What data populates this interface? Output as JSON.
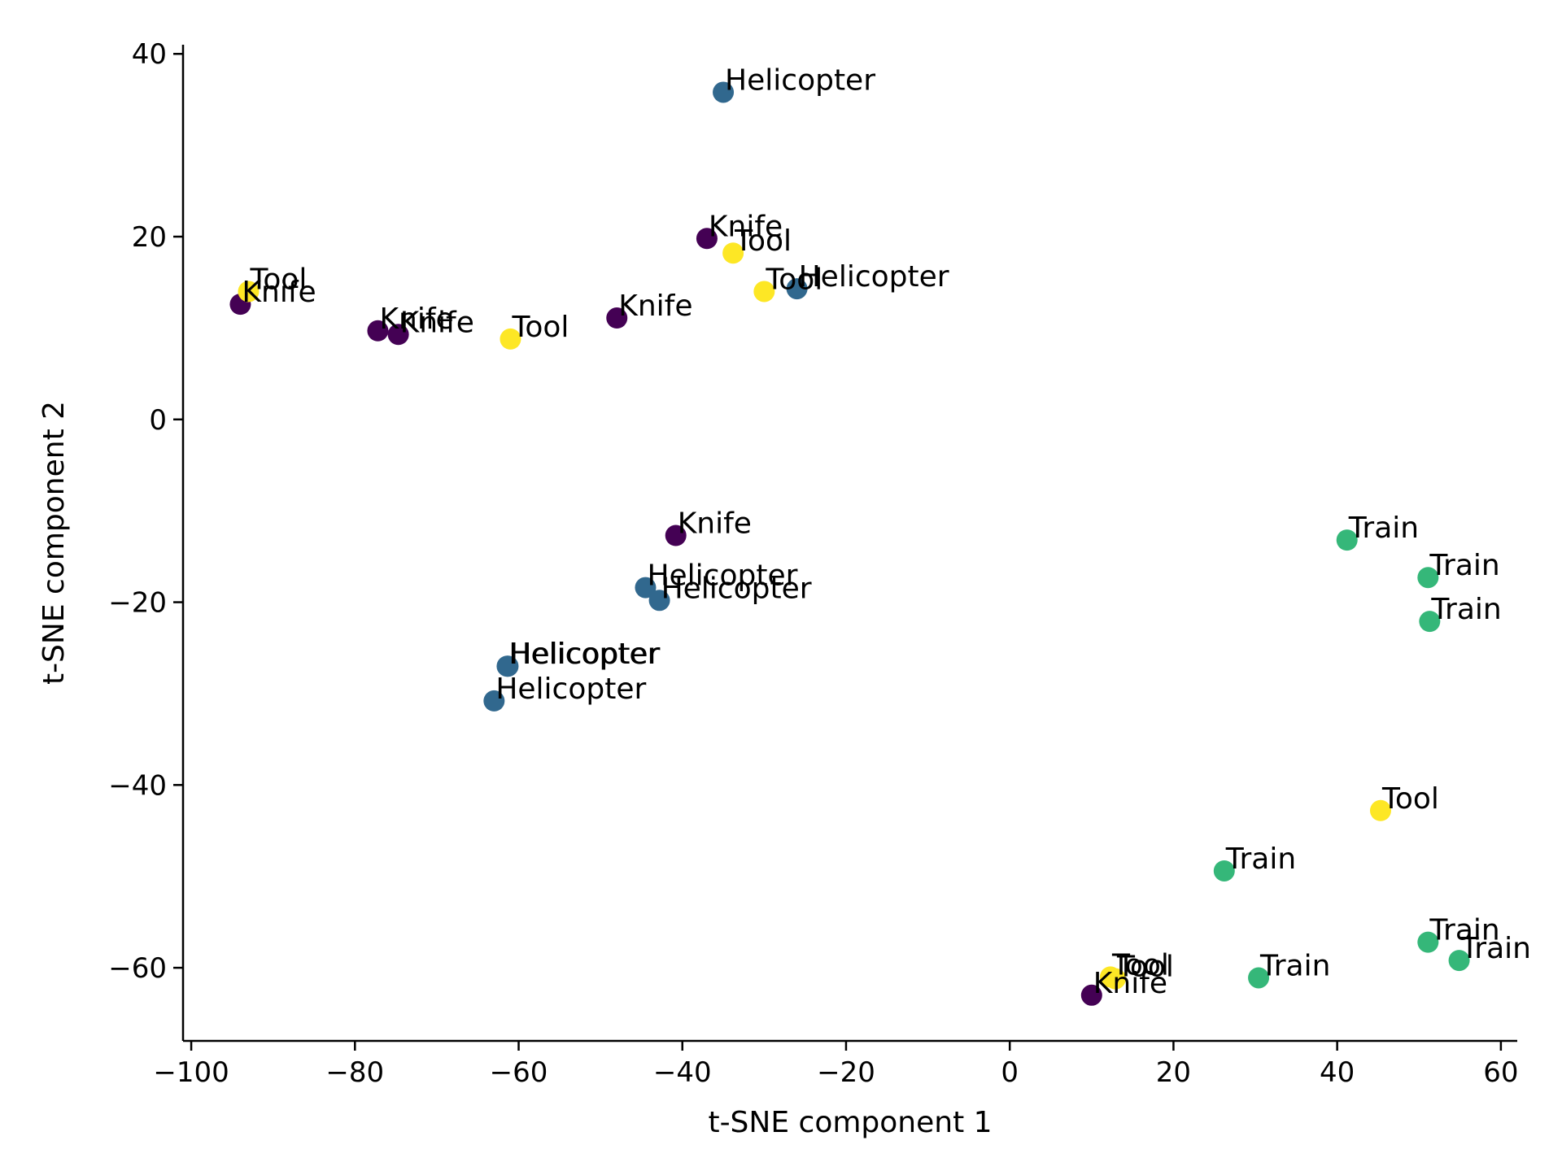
{
  "chart_data": {
    "type": "scatter",
    "title": "",
    "xlabel": "t-SNE component 1",
    "ylabel": "t-SNE component 2",
    "xlim": [
      -101,
      62
    ],
    "ylim": [
      -68,
      41
    ],
    "xticks": [
      -100,
      -80,
      -60,
      -40,
      -20,
      0,
      20,
      40,
      60
    ],
    "yticks": [
      -60,
      -40,
      -20,
      0,
      20,
      40
    ],
    "xtick_labels": [
      "−100",
      "−80",
      "−60",
      "−40",
      "−20",
      "0",
      "20",
      "40",
      "60"
    ],
    "ytick_labels": [
      "−60",
      "−40",
      "−20",
      "0",
      "20",
      "40"
    ],
    "grid": false,
    "colors": {
      "Knife": "#440154",
      "Helicopter": "#31688e",
      "Train": "#35b779",
      "Tool": "#fde725"
    },
    "points": [
      {
        "x": -35.0,
        "y": 35.8,
        "label": "Helicopter"
      },
      {
        "x": -37.0,
        "y": 19.8,
        "label": "Knife"
      },
      {
        "x": -33.8,
        "y": 18.2,
        "label": "Tool"
      },
      {
        "x": -30.0,
        "y": 14.0,
        "label": "Tool"
      },
      {
        "x": -26.0,
        "y": 14.3,
        "label": "Helicopter"
      },
      {
        "x": -94.0,
        "y": 12.6,
        "label": "Knife"
      },
      {
        "x": -93.0,
        "y": 14.0,
        "label": "Tool"
      },
      {
        "x": -77.2,
        "y": 9.7,
        "label": "Knife"
      },
      {
        "x": -74.7,
        "y": 9.3,
        "label": "Knife"
      },
      {
        "x": -61.0,
        "y": 8.8,
        "label": "Tool"
      },
      {
        "x": -48.0,
        "y": 11.1,
        "label": "Knife"
      },
      {
        "x": -40.8,
        "y": -12.7,
        "label": "Knife"
      },
      {
        "x": -44.5,
        "y": -18.4,
        "label": "Helicopter"
      },
      {
        "x": -42.8,
        "y": -19.8,
        "label": "Helicopter"
      },
      {
        "x": -61.3,
        "y": -27.0,
        "label": "Helicopter"
      },
      {
        "x": -61.4,
        "y": -27.0,
        "label": "Helicopter"
      },
      {
        "x": -63.0,
        "y": -30.8,
        "label": "Helicopter"
      },
      {
        "x": 41.2,
        "y": -13.2,
        "label": "Train"
      },
      {
        "x": 51.1,
        "y": -17.3,
        "label": "Train"
      },
      {
        "x": 51.3,
        "y": -22.1,
        "label": "Train"
      },
      {
        "x": 45.3,
        "y": -42.8,
        "label": "Tool"
      },
      {
        "x": 26.2,
        "y": -49.4,
        "label": "Train"
      },
      {
        "x": 51.1,
        "y": -57.2,
        "label": "Train"
      },
      {
        "x": 54.9,
        "y": -59.2,
        "label": "Train"
      },
      {
        "x": 30.4,
        "y": -61.1,
        "label": "Train"
      },
      {
        "x": 12.3,
        "y": -61.0,
        "label": "Tool"
      },
      {
        "x": 12.9,
        "y": -61.2,
        "label": "Tool"
      },
      {
        "x": 10.0,
        "y": -63.0,
        "label": "Knife"
      }
    ]
  }
}
